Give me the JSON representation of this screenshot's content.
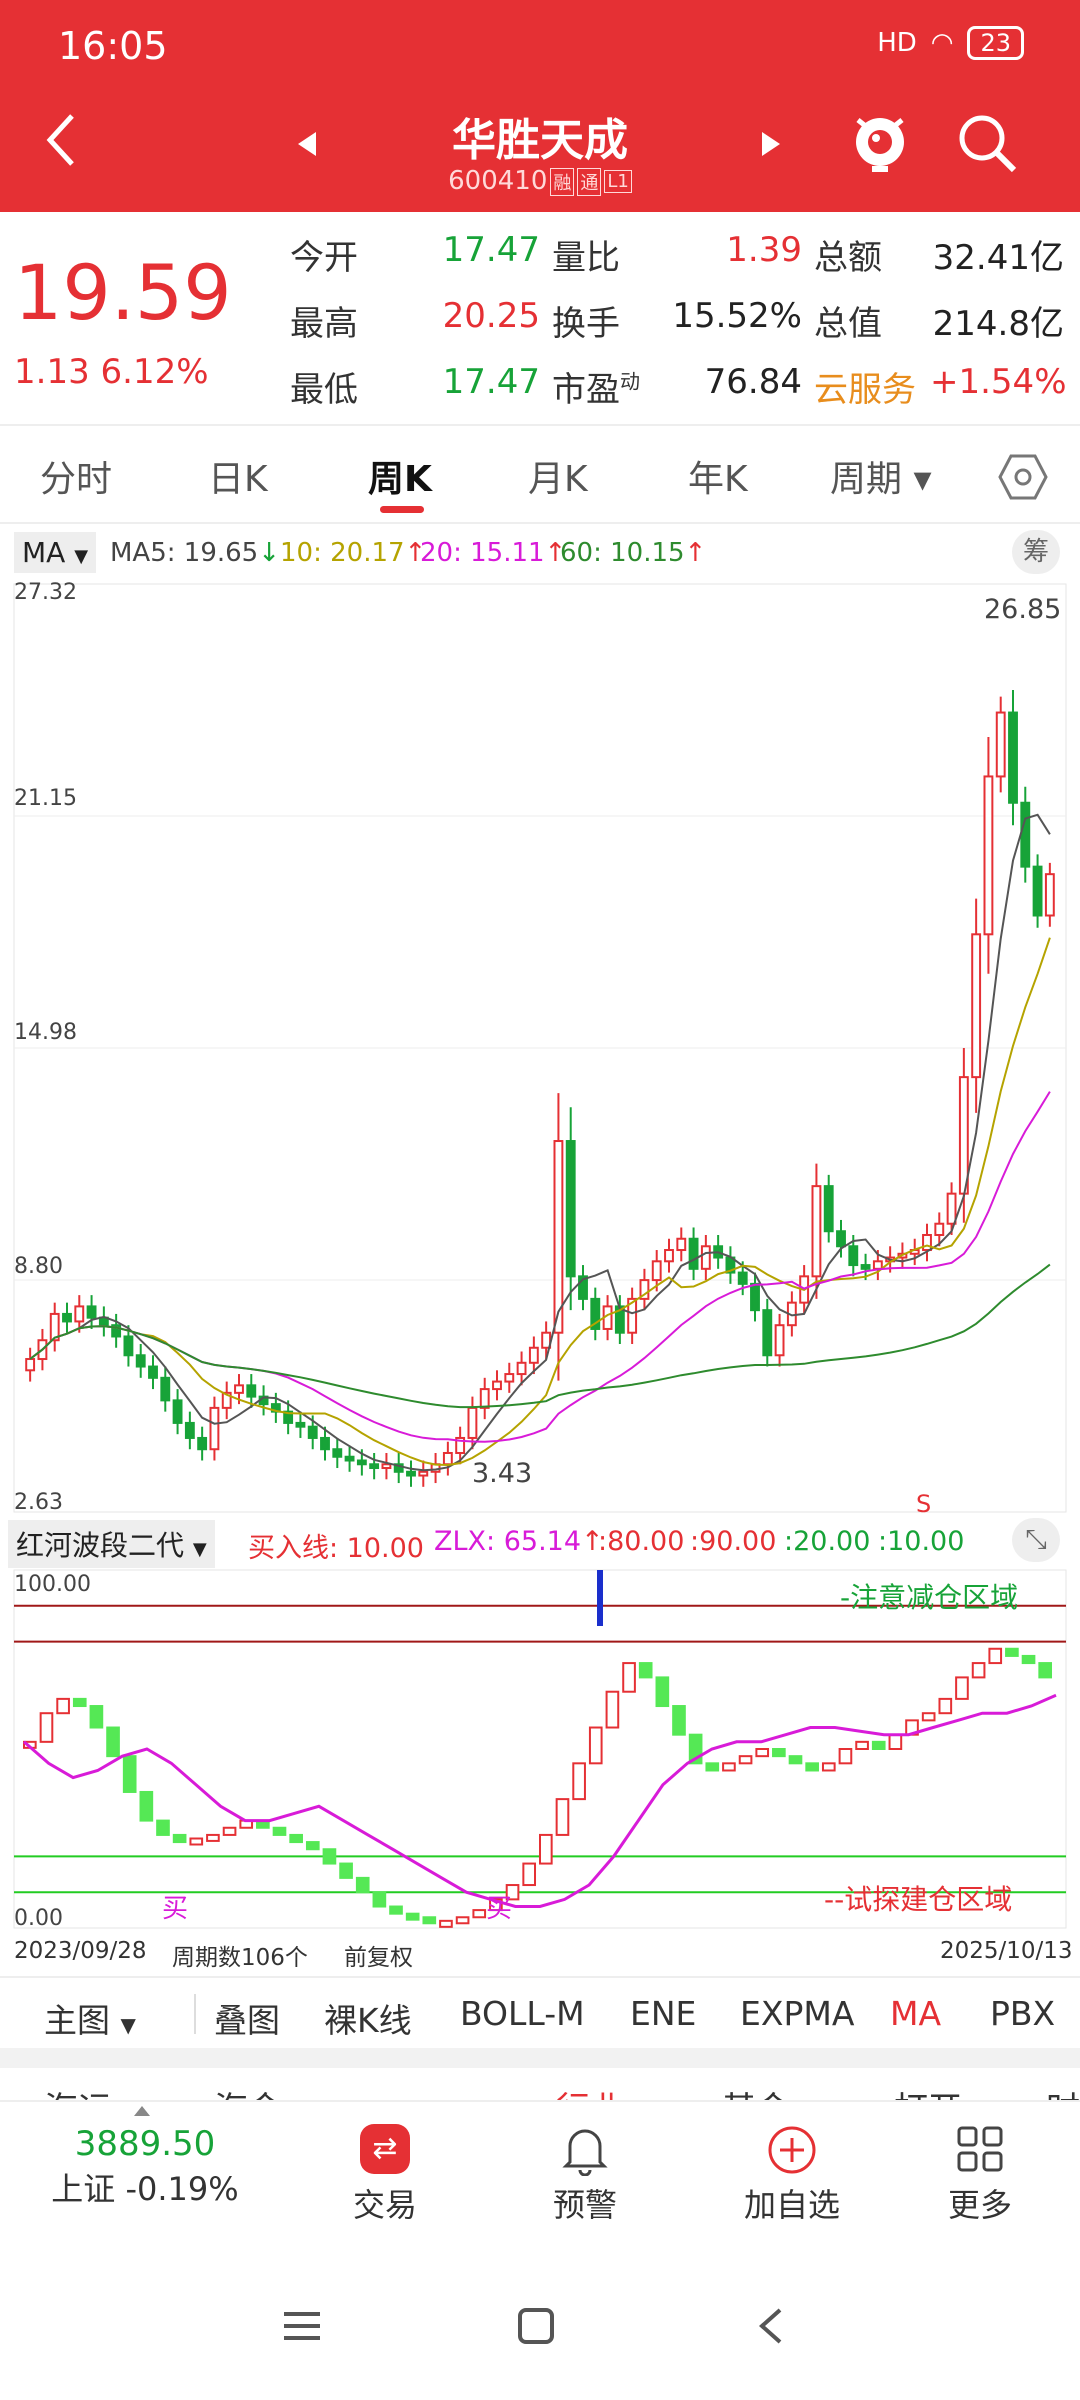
{
  "status": {
    "time": "16:05",
    "signal": "HD",
    "battery": "23"
  },
  "header": {
    "title": "华胜天成",
    "code": "600410",
    "tag_rong": "融",
    "tag_tong": "通",
    "tag_l1": "L1"
  },
  "quote": {
    "price": "19.59",
    "change": "1.13 6.12%",
    "rows": [
      {
        "l1": "今开",
        "v1": "17.47",
        "l2": "量比",
        "v2": "1.39",
        "l3": "总额",
        "v3": "32.41亿"
      },
      {
        "l1": "最高",
        "v1": "20.25",
        "l2": "换手",
        "v2": "15.52%",
        "l3": "总值",
        "v3": "214.8亿"
      },
      {
        "l1": "最低",
        "v1": "17.47",
        "l2": "市盈",
        "l2_sup": "动",
        "v2": "76.84",
        "l3": "云服务",
        "v3": "+1.54%"
      }
    ]
  },
  "tabs": [
    "分时",
    "日K",
    "周K",
    "月K",
    "年K",
    "周期"
  ],
  "ma": {
    "selector": "MA",
    "ma5": "MA5: 19.65",
    "ma10": "10: 20.17",
    "ma20": "20: 15.11",
    "ma60": "60: 10.15",
    "chip_label": "筹"
  },
  "chart_data": [
    {
      "type": "candlestick",
      "title": "",
      "y_ticks": [
        "27.32",
        "21.15",
        "14.98",
        "8.80",
        "2.63"
      ],
      "ylim": [
        2.63,
        27.32
      ],
      "high_label": "26.85",
      "low_label": "3.43",
      "signal_label": "S",
      "period_count": 106,
      "x_start": "2023/09/28",
      "x_end": "2025/10/13",
      "ma_colors": {
        "ma5": "#555555",
        "ma10": "#b5a300",
        "ma20": "#d81bd8",
        "ma60": "#2e8b2e"
      },
      "candles_close_approx": [
        6.7,
        7.2,
        7.9,
        7.7,
        8.1,
        7.8,
        7.6,
        7.3,
        6.8,
        6.5,
        6.2,
        5.6,
        5.0,
        4.6,
        4.3,
        5.4,
        5.8,
        6.0,
        5.7,
        5.5,
        5.3,
        5.0,
        4.9,
        4.6,
        4.3,
        4.1,
        4.0,
        3.9,
        3.8,
        3.9,
        3.7,
        3.6,
        3.7,
        3.9,
        4.2,
        4.6,
        5.4,
        5.9,
        6.1,
        6.3,
        6.6,
        7.0,
        7.4,
        12.5,
        8.9,
        8.3,
        7.5,
        8.1,
        7.4,
        8.3,
        8.8,
        9.3,
        9.6,
        9.9,
        9.1,
        9.7,
        9.4,
        9.0,
        8.7,
        8.0,
        6.8,
        7.6,
        8.2,
        8.9,
        11.3,
        10.1,
        9.7,
        9.2,
        9.1,
        9.3,
        9.4,
        9.5,
        9.6,
        10.0,
        10.3,
        11.1,
        14.2,
        18.0,
        22.2,
        23.9,
        21.5,
        19.8,
        18.5,
        19.6
      ]
    },
    {
      "type": "line",
      "title": "红河波段二代",
      "buy_line": "买入线: 10.00",
      "zlx": "ZLX: 65.14",
      "levels": [
        ":80.00",
        ":90.00",
        ":20.00",
        ":10.00"
      ],
      "ylim": [
        0,
        100
      ],
      "y_ticks": [
        "100.00",
        "0.00"
      ],
      "zone_top": "-注意减仓区域",
      "zone_bottom": "--试探建仓区域",
      "buy_marks": [
        "买",
        "买"
      ],
      "signal": [
        52,
        60,
        64,
        62,
        56,
        48,
        38,
        30,
        26,
        24,
        25,
        26,
        28,
        30,
        28,
        26,
        24,
        22,
        18,
        14,
        10,
        6,
        4,
        3,
        2,
        2,
        3,
        5,
        8,
        12,
        18,
        26,
        36,
        46,
        56,
        66,
        74,
        70,
        62,
        54,
        46,
        44,
        46,
        48,
        50,
        48,
        46,
        44,
        46,
        50,
        52,
        50,
        54,
        58,
        60,
        64,
        70,
        74,
        78,
        76,
        74,
        70
      ],
      "zlx_values": [
        52,
        46,
        42,
        44,
        48,
        50,
        46,
        40,
        34,
        30,
        30,
        32,
        34,
        30,
        26,
        22,
        18,
        14,
        10,
        8,
        6,
        6,
        8,
        12,
        20,
        30,
        40,
        46,
        50,
        52,
        52,
        54,
        56,
        56,
        55,
        54,
        54,
        56,
        58,
        60,
        60,
        62,
        65
      ]
    }
  ],
  "chart_footer": {
    "start_date": "2023/09/28",
    "period_count": "周期数106个",
    "adjust": "前复权",
    "end_date": "2025/10/13"
  },
  "subtabs": [
    "主图",
    "叠图",
    "裸K线",
    "BOLL-M",
    "ENE",
    "EXPMA",
    "MA",
    "PBX"
  ],
  "peek": [
    "海运",
    "海金",
    "行业",
    "基金",
    "打开",
    "时"
  ],
  "navbar": {
    "index_value": "3889.50",
    "index_label": "上证 -0.19%",
    "trade": "交易",
    "alert": "预警",
    "add": "加自选",
    "more": "更多"
  }
}
